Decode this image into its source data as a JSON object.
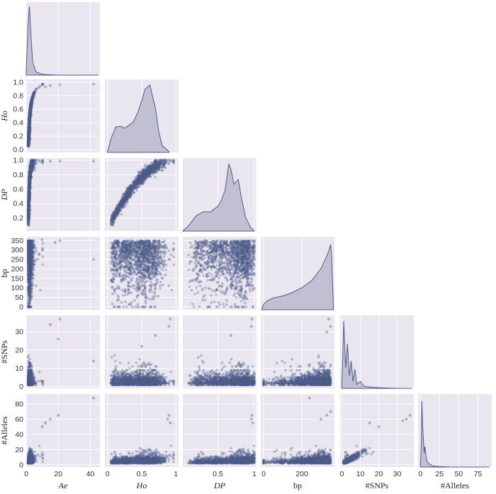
{
  "chart_data": {
    "type": "scatter",
    "title": "",
    "variables": [
      {
        "key": "Ae",
        "label": "Ae",
        "italic": true,
        "range": [
          0,
          46
        ],
        "ticks": [
          0,
          20,
          40
        ]
      },
      {
        "key": "Ho",
        "label": "Ho",
        "italic": true,
        "range": [
          -0.04,
          1.04
        ],
        "ticks": [
          0,
          0.5,
          1.0
        ],
        "ticks_y": [
          0,
          0.2,
          0.4,
          0.6,
          0.8,
          1.0
        ]
      },
      {
        "key": "DP",
        "label": "DP",
        "italic": true,
        "range": [
          0.02,
          1.03
        ],
        "ticks": [
          0,
          0.5,
          1.0
        ],
        "ticks_y": [
          0.2,
          0.4,
          0.6,
          0.8,
          1.0
        ]
      },
      {
        "key": "bp",
        "label": "bp",
        "italic": false,
        "range": [
          -15,
          370
        ],
        "ticks": [
          0,
          200
        ],
        "ticks_y": [
          0,
          50,
          100,
          150,
          200,
          250,
          300,
          350
        ]
      },
      {
        "key": "SNPs",
        "label": "#SNPs",
        "italic": false,
        "range": [
          -1,
          39
        ],
        "ticks": [
          0,
          10,
          20,
          30
        ],
        "ticks_y": [
          0,
          10,
          20,
          30
        ]
      },
      {
        "key": "Alleles",
        "label": "#Alleles",
        "italic": false,
        "range": [
          -3,
          93
        ],
        "ticks": [
          0,
          25,
          50,
          75
        ],
        "ticks_y": [
          0,
          20,
          40,
          60,
          80
        ]
      }
    ],
    "layout": "corner",
    "diagonal": "kde",
    "off_diagonal": "scatter",
    "grid": true,
    "colors": {
      "panel_bg": "#eae6f0",
      "grid": "#ffffff",
      "points": "#4c5d8a",
      "kde_fill": "#b8b8cc",
      "kde_line": "#4c5d8a"
    },
    "kde": {
      "Ae": {
        "x": [
          0,
          1,
          2,
          3,
          4,
          6,
          10,
          20,
          45
        ],
        "density": [
          0.05,
          0.7,
          1.0,
          0.55,
          0.2,
          0.05,
          0.01,
          0.0,
          0.0
        ]
      },
      "Ho": {
        "x": [
          0.0,
          0.05,
          0.12,
          0.2,
          0.25,
          0.32,
          0.38,
          0.45,
          0.5,
          0.55,
          0.62,
          0.7,
          0.75,
          0.8,
          0.9
        ],
        "density": [
          0.02,
          0.2,
          0.37,
          0.38,
          0.35,
          0.4,
          0.45,
          0.6,
          0.75,
          0.92,
          0.98,
          0.65,
          0.3,
          0.1,
          0.01
        ]
      },
      "DP": {
        "x": [
          0.02,
          0.1,
          0.2,
          0.3,
          0.4,
          0.5,
          0.55,
          0.6,
          0.65,
          0.68,
          0.72,
          0.75,
          0.78,
          0.82,
          0.88,
          0.95,
          1.0
        ],
        "density": [
          0.0,
          0.08,
          0.22,
          0.28,
          0.28,
          0.36,
          0.45,
          0.6,
          0.97,
          0.9,
          0.68,
          0.72,
          0.75,
          0.5,
          0.2,
          0.05,
          0.0
        ],
        "label": "DP"
      },
      "bp": {
        "x": [
          -10,
          0,
          20,
          50,
          100,
          150,
          200,
          250,
          300,
          320,
          340,
          350,
          355,
          365
        ],
        "density": [
          0.0,
          0.08,
          0.13,
          0.17,
          0.2,
          0.25,
          0.32,
          0.42,
          0.6,
          0.72,
          0.85,
          0.95,
          0.8,
          0.0
        ]
      },
      "SNPs": {
        "x": [
          0,
          1,
          2,
          3,
          4,
          5,
          6,
          7,
          8,
          10,
          12,
          15,
          20,
          30,
          38
        ],
        "density": [
          0.1,
          0.98,
          0.3,
          0.65,
          0.18,
          0.4,
          0.1,
          0.28,
          0.06,
          0.1,
          0.03,
          0.02,
          0.01,
          0.0,
          0.0
        ]
      },
      "Alleles": {
        "x": [
          0,
          1,
          2,
          3,
          4,
          5,
          6,
          8,
          10,
          15,
          20,
          40,
          90
        ],
        "density": [
          0.0,
          0.3,
          0.96,
          0.6,
          0.4,
          0.2,
          0.3,
          0.1,
          0.06,
          0.02,
          0.01,
          0.0,
          0.0
        ]
      }
    },
    "outliers": [
      {
        "row": "Ho",
        "col": "Ae",
        "points": [
          [
            42,
            0.97
          ],
          [
            21,
            0.96
          ],
          [
            15,
            0.95
          ],
          [
            12,
            0.93
          ]
        ]
      },
      {
        "row": "DP",
        "col": "Ae",
        "points": [
          [
            42,
            0.99
          ],
          [
            21,
            0.99
          ],
          [
            15,
            0.99
          ]
        ]
      },
      {
        "row": "bp",
        "col": "Ae",
        "points": [
          [
            42,
            250
          ],
          [
            21,
            350
          ],
          [
            18,
            340
          ],
          [
            10,
            355
          ],
          [
            8,
            280
          ]
        ]
      },
      {
        "row": "SNPs",
        "col": "Ae",
        "points": [
          [
            21,
            37
          ],
          [
            15,
            34
          ],
          [
            42,
            14
          ],
          [
            20,
            26
          ]
        ]
      },
      {
        "row": "Alleles",
        "col": "Ae",
        "points": [
          [
            42,
            88
          ],
          [
            20,
            65
          ],
          [
            15,
            60
          ],
          [
            12,
            55
          ],
          [
            10,
            50
          ]
        ]
      },
      {
        "row": "SNPs",
        "col": "Ho",
        "points": [
          [
            0.92,
            37
          ],
          [
            0.9,
            33
          ],
          [
            0.5,
            22
          ],
          [
            0.7,
            28
          ]
        ]
      },
      {
        "row": "SNPs",
        "col": "DP",
        "points": [
          [
            0.97,
            37
          ],
          [
            0.96,
            33
          ],
          [
            0.68,
            28
          ]
        ]
      },
      {
        "row": "SNPs",
        "col": "bp",
        "points": [
          [
            340,
            37
          ],
          [
            350,
            33
          ],
          [
            330,
            30
          ]
        ]
      },
      {
        "row": "Alleles",
        "col": "Ho",
        "points": [
          [
            0.9,
            65
          ],
          [
            0.88,
            60
          ],
          [
            0.92,
            55
          ]
        ]
      },
      {
        "row": "Alleles",
        "col": "DP",
        "points": [
          [
            0.97,
            65
          ],
          [
            0.96,
            60
          ],
          [
            0.98,
            55
          ]
        ]
      },
      {
        "row": "Alleles",
        "col": "bp",
        "points": [
          [
            240,
            88
          ],
          [
            300,
            60
          ],
          [
            330,
            65
          ],
          [
            350,
            70
          ]
        ]
      },
      {
        "row": "Alleles",
        "col": "SNPs",
        "points": [
          [
            37,
            65
          ],
          [
            35,
            60
          ],
          [
            33,
            58
          ],
          [
            20,
            50
          ],
          [
            15,
            55
          ]
        ]
      }
    ]
  }
}
